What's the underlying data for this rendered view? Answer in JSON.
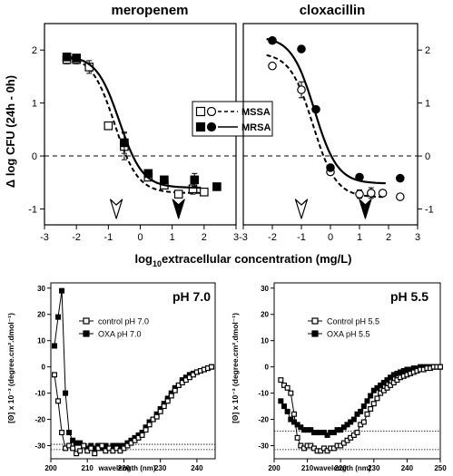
{
  "figure": {
    "shared_xlabel_pre": "log",
    "shared_xlabel_sub": "10",
    "shared_xlabel_post": "extracellular concentration (mg/L)",
    "shared_ylabel": "Δ log CFU (24h - 0h)"
  },
  "chart_data": [
    {
      "type": "scatter",
      "title": "meropenem",
      "ylabel": "Δ log CFU (24h - 0h)",
      "xlim": [
        -3,
        3
      ],
      "ylim": [
        -1.3,
        2.5
      ],
      "xticks": [
        "-3",
        "-2",
        "-1",
        "0",
        "1",
        "2",
        "3"
      ],
      "yticks": [
        "-1",
        "0",
        "1",
        "2"
      ],
      "reference_line_y": 0,
      "arrows": [
        {
          "x": -0.75,
          "style": "open"
        },
        {
          "x": 1.2,
          "style": "filled"
        }
      ],
      "legend": {
        "placement": "center-right",
        "entries": [
          {
            "label": "MSSA",
            "line": "dashed",
            "marker": "open-square / open-circle"
          },
          {
            "label": "MRSA",
            "line": "solid",
            "marker": "filled-square / filled-circle"
          }
        ]
      },
      "series": [
        {
          "name": "MSSA",
          "marker": "open-square",
          "line": "dashed",
          "points": [
            [
              -2.3,
              1.82,
              0.08
            ],
            [
              -2.0,
              1.82,
              0.08
            ],
            [
              -1.6,
              1.68,
              0.12
            ],
            [
              -1.0,
              0.57,
              0
            ],
            [
              -0.5,
              0.18,
              0.25
            ],
            [
              0.25,
              -0.4,
              0
            ],
            [
              0.75,
              -0.55,
              0
            ],
            [
              1.2,
              -0.72,
              0
            ],
            [
              1.65,
              -0.62,
              0.1
            ],
            [
              2.0,
              -0.68,
              0
            ]
          ],
          "fit": {
            "top": 1.9,
            "bottom": -0.7,
            "ec50": -0.8,
            "hill": 1.2
          }
        },
        {
          "name": "MRSA",
          "marker": "filled-square",
          "line": "solid",
          "points": [
            [
              -2.3,
              1.87,
              0
            ],
            [
              -2.0,
              1.85,
              0
            ],
            [
              -0.5,
              0.25,
              0.2
            ],
            [
              0.25,
              -0.33,
              0
            ],
            [
              0.75,
              -0.45,
              0
            ],
            [
              1.7,
              -0.45,
              0.12
            ],
            [
              2.4,
              -0.58,
              0
            ]
          ],
          "fit": {
            "top": 1.9,
            "bottom": -0.6,
            "ec50": -0.65,
            "hill": 1.2
          }
        }
      ]
    },
    {
      "type": "scatter",
      "title": "cloxacillin",
      "xlim": [
        -3,
        3
      ],
      "ylim": [
        -1.3,
        2.5
      ],
      "xticks": [
        "-3",
        "-2",
        "-1",
        "0",
        "1",
        "2",
        "3"
      ],
      "yticks": [
        "-1",
        "0",
        "1",
        "2"
      ],
      "reference_line_y": 0,
      "arrows": [
        {
          "x": -1.0,
          "style": "open"
        },
        {
          "x": 1.2,
          "style": "filled"
        }
      ],
      "series": [
        {
          "name": "MSSA",
          "marker": "open-circle",
          "line": "dashed",
          "points": [
            [
              -2.0,
              1.7,
              0
            ],
            [
              -1.0,
              1.25,
              0.15
            ],
            [
              0.0,
              -0.3,
              0
            ],
            [
              1.0,
              -0.72,
              0.08
            ],
            [
              1.4,
              -0.7,
              0.1
            ],
            [
              1.8,
              -0.7,
              0
            ],
            [
              2.4,
              -0.77,
              0
            ]
          ],
          "fit": {
            "top": 1.95,
            "bottom": -0.78,
            "ec50": -0.6,
            "hill": 1.1
          }
        },
        {
          "name": "MRSA",
          "marker": "filled-circle",
          "line": "solid",
          "points": [
            [
              -2.0,
              2.18,
              0
            ],
            [
              -1.0,
              2.02,
              0
            ],
            [
              -0.5,
              0.88,
              0
            ],
            [
              0.0,
              -0.22,
              0
            ],
            [
              1.0,
              -0.4,
              0
            ],
            [
              2.4,
              -0.42,
              0
            ]
          ],
          "fit": {
            "top": 2.25,
            "bottom": -0.52,
            "ec50": -0.55,
            "hill": 1.1
          }
        }
      ]
    },
    {
      "type": "line",
      "title": "pH 7.0",
      "xlabel": "wavelength (nm)",
      "ylabel": "[Θ] x 10⁻³ (degree.cm².dmol⁻¹)",
      "xlim": [
        200,
        245
      ],
      "ylim": [
        -35,
        32
      ],
      "xticks": [
        "200",
        "210",
        "220",
        "230",
        "240"
      ],
      "yticks": [
        "-30",
        "-20",
        "-10",
        "0",
        "10",
        "20",
        "30"
      ],
      "reference_lines_y": [
        -29.5,
        -31.5
      ],
      "legend": {
        "placement": "upper-center",
        "entries": [
          {
            "label": "control pH 7.0",
            "marker": "open-square"
          },
          {
            "label": "OXA pH 7.0",
            "marker": "filled-square"
          }
        ]
      },
      "series": [
        {
          "name": "control pH 7.0",
          "marker": "open-square",
          "x": [
            201,
            202,
            203,
            204,
            205,
            206,
            207,
            208,
            209,
            210,
            211,
            212,
            213,
            214,
            215,
            216,
            217,
            218,
            219,
            220,
            221,
            222,
            223,
            224,
            225,
            226,
            227,
            228,
            229,
            230,
            231,
            232,
            233,
            234,
            235,
            236,
            237,
            238,
            239,
            240,
            241,
            242,
            243,
            244
          ],
          "y": [
            -3,
            -13,
            -25,
            -31,
            -30,
            -31,
            -33,
            -32,
            -30,
            -32,
            -31,
            -33,
            -31,
            -30,
            -32,
            -31,
            -32,
            -31,
            -32,
            -31,
            -30,
            -29,
            -28,
            -27,
            -26,
            -24,
            -22,
            -20,
            -19,
            -17,
            -15,
            -13,
            -11,
            -9,
            -7,
            -6,
            -5,
            -4,
            -3,
            -2,
            -1.5,
            -1,
            -0.5,
            0
          ]
        },
        {
          "name": "OXA pH 7.0",
          "marker": "filled-square",
          "x": [
            201,
            202,
            203,
            204,
            205,
            206,
            207,
            208,
            209,
            210,
            211,
            212,
            213,
            214,
            215,
            216,
            217,
            218,
            219,
            220,
            221,
            222,
            223,
            224,
            225,
            226,
            227,
            228,
            229,
            230,
            231,
            232,
            233,
            234,
            235,
            236,
            237,
            238,
            239,
            240,
            241,
            242,
            243,
            244
          ],
          "y": [
            8,
            19,
            29,
            -10,
            -25,
            -28,
            -29,
            -29,
            -30,
            -31,
            -30,
            -31,
            -30,
            -31,
            -30,
            -31,
            -30,
            -30,
            -30,
            -30,
            -29,
            -28,
            -27,
            -26,
            -25,
            -23,
            -21,
            -20,
            -18,
            -16,
            -14,
            -12,
            -10,
            -8,
            -7,
            -5,
            -4,
            -3,
            -2.5,
            -2,
            -1.5,
            -1,
            -0.5,
            0
          ]
        }
      ]
    },
    {
      "type": "line",
      "title": "pH 5.5",
      "xlabel": "wavelength (nm)",
      "ylabel": "[Θ] x 10⁻³ (degree.cm².dmol⁻¹)",
      "xlim": [
        200,
        250
      ],
      "ylim": [
        -35,
        32
      ],
      "xticks": [
        "200",
        "210",
        "220",
        "230",
        "240",
        "250"
      ],
      "yticks": [
        "-30",
        "-20",
        "-10",
        "0",
        "10",
        "20",
        "30"
      ],
      "reference_lines_y": [
        -24.5,
        -31.5
      ],
      "legend": {
        "placement": "upper-center",
        "entries": [
          {
            "label": "Control pH 5.5",
            "marker": "open-square"
          },
          {
            "label": "OXA pH 5.5",
            "marker": "filled-square"
          }
        ]
      },
      "series": [
        {
          "name": "Control pH 5.5",
          "marker": "open-square",
          "x": [
            202,
            203,
            204,
            205,
            206,
            207,
            208,
            209,
            210,
            211,
            212,
            213,
            214,
            215,
            216,
            217,
            218,
            219,
            220,
            221,
            222,
            223,
            224,
            225,
            226,
            227,
            228,
            229,
            230,
            231,
            232,
            233,
            234,
            235,
            236,
            237,
            238,
            239,
            240,
            241,
            242,
            243,
            244,
            245,
            246,
            247,
            248,
            249,
            250
          ],
          "y": [
            -5,
            -7,
            -8,
            -10,
            -18,
            -27,
            -30,
            -31,
            -30,
            -30,
            -31,
            -32,
            -32,
            -31,
            -32,
            -31,
            -31,
            -30,
            -30,
            -29,
            -28,
            -27,
            -26,
            -25,
            -22,
            -21,
            -18,
            -16,
            -14,
            -12,
            -10,
            -9,
            -8,
            -7,
            -6,
            -5,
            -4,
            -3.5,
            -3,
            -2.5,
            -2,
            -1.5,
            -1,
            -1,
            -0.5,
            -0.5,
            0,
            0,
            0
          ]
        },
        {
          "name": "OXA pH 5.5",
          "marker": "filled-square",
          "x": [
            202,
            203,
            204,
            205,
            206,
            207,
            208,
            209,
            210,
            211,
            212,
            213,
            214,
            215,
            216,
            217,
            218,
            219,
            220,
            221,
            222,
            223,
            224,
            225,
            226,
            227,
            228,
            229,
            230,
            231,
            232,
            233,
            234,
            235,
            236,
            237,
            238,
            239,
            240,
            241,
            242,
            243,
            244,
            245,
            246,
            247,
            248,
            249,
            250
          ],
          "y": [
            -13,
            -15,
            -17,
            -20,
            -21,
            -22,
            -23,
            -24,
            -24,
            -24,
            -25,
            -25,
            -25,
            -25,
            -26,
            -25,
            -25,
            -24,
            -24,
            -23,
            -22,
            -21,
            -20,
            -18,
            -17,
            -15,
            -13,
            -11,
            -9,
            -8,
            -7,
            -6,
            -5,
            -4,
            -3,
            -2.5,
            -2,
            -1.5,
            -1,
            -1,
            -0.5,
            -0.5,
            0,
            0,
            0,
            0,
            0,
            0,
            0
          ]
        }
      ]
    }
  ]
}
